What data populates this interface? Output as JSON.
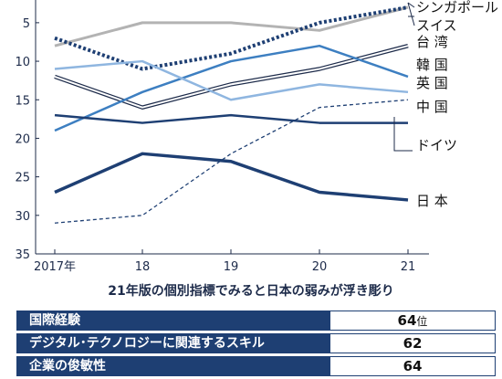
{
  "chart_data": {
    "type": "line",
    "x": [
      "2017年",
      "18",
      "19",
      "20",
      "21"
    ],
    "yticks": [
      5,
      10,
      15,
      20,
      25,
      30,
      35
    ],
    "ylim": [
      3,
      35
    ],
    "y_inverted": true,
    "grid": false,
    "series": [
      {
        "name": "シンガポール",
        "style": "solid",
        "color": "#b3b3b3",
        "values": [
          8,
          5,
          5,
          6,
          3
        ]
      },
      {
        "name": "スイス",
        "style": "dotted",
        "color": "#1e3f73",
        "values": [
          7,
          11,
          9,
          5,
          3
        ]
      },
      {
        "name": "台 湾",
        "style": "outline",
        "color": "#ffffff",
        "values": [
          12,
          16,
          13,
          11,
          8
        ]
      },
      {
        "name": "韓 国",
        "style": "solid",
        "color": "#3d7fc1",
        "values": [
          19,
          14,
          10,
          8,
          12
        ]
      },
      {
        "name": "英 国",
        "style": "solid",
        "color": "#8fb6e0",
        "values": [
          11,
          10,
          15,
          13,
          14
        ]
      },
      {
        "name": "中 国",
        "style": "solid",
        "color": "#1e3f73",
        "values": [
          17,
          18,
          17,
          18,
          18
        ]
      },
      {
        "name": "ドイツ",
        "style": "dashed",
        "color": "#1e3f73",
        "values": [
          31,
          30,
          22,
          16,
          15
        ]
      },
      {
        "name": "日 本",
        "style": "thick",
        "color": "#1e3f73",
        "values": [
          27,
          22,
          23,
          27,
          28
        ]
      }
    ]
  },
  "subtitle": "21年版の個別指標でみると日本の弱みが浮き彫り",
  "table": {
    "rows": [
      {
        "name": "国際経験",
        "value": "64",
        "unit": "位"
      },
      {
        "name": "デジタル･テクノロジーに関連するスキル",
        "value": "62",
        "unit": ""
      },
      {
        "name": "企業の俊敏性",
        "value": "64",
        "unit": ""
      }
    ]
  }
}
